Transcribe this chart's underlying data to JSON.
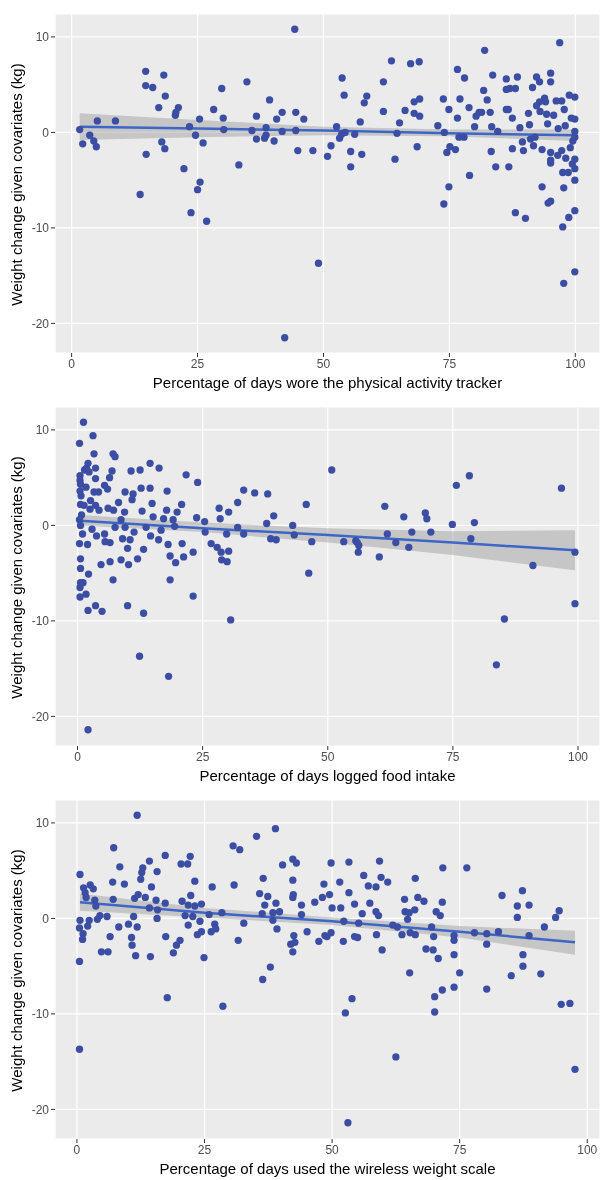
{
  "chart_data": [
    {
      "type": "scatter",
      "xlabel": "Percentage of days wore the physical activity tracker",
      "ylabel": "Weight change given covariates (kg)",
      "xlim": [
        -3.3,
        104.9
      ],
      "ylim": [
        -23.1,
        12.4
      ],
      "xticks": [
        0,
        25,
        50,
        75,
        100
      ],
      "yticks": [
        -20,
        -10,
        0,
        10
      ],
      "grid": true,
      "series": [
        {
          "marker": "circle",
          "color": "#3b4ea3",
          "x": [
            1.6,
            2.2,
            3.6,
            4.4,
            4.9,
            5.1,
            8.7,
            13.6,
            14.7,
            14.7,
            14.8,
            16.1,
            17.3,
            17.9,
            18.3,
            18.5,
            18.6,
            20.6,
            20.7,
            21.2,
            22.3,
            23.4,
            23.7,
            24.6,
            25.0,
            25.4,
            25.5,
            26.1,
            26.8,
            28.2,
            29.8,
            30.1,
            30.2,
            33.2,
            34.8,
            35.8,
            36.7,
            36.7,
            38.3,
            38.6,
            38.6,
            39.3,
            40.2,
            40.7,
            41.8,
            41.8,
            42.3,
            44.3,
            44.5,
            44.5,
            44.9,
            46.1,
            47.9,
            49.0,
            50.8,
            51.5,
            52.6,
            53.2,
            53.6,
            53.7,
            54.1,
            54.3,
            55.4,
            55.4,
            56.2,
            57.3,
            57.6,
            58.1,
            58.6,
            61.9,
            61.9,
            63.5,
            64.2,
            64.6,
            65.1,
            66.2,
            67.3,
            68.0,
            68.0,
            68.6,
            69.0,
            69.1,
            69.1,
            72.7,
            73.8,
            73.9,
            74.0,
            74.5,
            74.9,
            74.9,
            75.1,
            76.2,
            76.6,
            76.6,
            76.9,
            77.1,
            77.9,
            78.0,
            78.9,
            79.0,
            80.0,
            80.3,
            80.9,
            81.4,
            81.8,
            82.0,
            82.5,
            83.1,
            83.3,
            83.4,
            83.6,
            84.2,
            84.6,
            86.3,
            86.3,
            86.3,
            86.7,
            86.8,
            87.0,
            87.5,
            87.5,
            88.1,
            88.1,
            88.5,
            89.0,
            89.5,
            89.7,
            90.1,
            90.7,
            90.9,
            91.1,
            91.5,
            91.7,
            92.0,
            92.3,
            92.3,
            92.9,
            92.9,
            93.0,
            93.4,
            93.4,
            93.9,
            94.1,
            94.3,
            94.5,
            94.6,
            95.1,
            95.1,
            95.1,
            95.1,
            95.1,
            95.1,
            95.7,
            96.2,
            96.5,
            96.6,
            96.9,
            97.3,
            97.3,
            97.5,
            97.5,
            97.7,
            97.7,
            97.8,
            98.0,
            98.1,
            98.6,
            98.7,
            98.8,
            99.0,
            99.2,
            99.4,
            99.5,
            99.9,
            99.9,
            99.9,
            99.9,
            99.9,
            99.9,
            99.9,
            99.9,
            99.9
          ],
          "values": [
            0.3,
            -1.2,
            -0.3,
            -0.9,
            -1.5,
            1.2,
            1.2,
            -6.5,
            6.4,
            4.9,
            -2.3,
            4.7,
            2.6,
            -1.0,
            6.0,
            -1.7,
            3.8,
            1.8,
            2.1,
            2.6,
            -3.8,
            0.6,
            -8.4,
            -0.3,
            -6.0,
            1.4,
            -5.2,
            -1.1,
            -9.3,
            2.4,
            4.6,
            1.5,
            0.3,
            -3.4,
            5.3,
            0.2,
            1.7,
            -0.7,
            -0.6,
            0.5,
            -0.3,
            3.4,
            -0.9,
            1.4,
            2.1,
            0.1,
            -21.5,
            10.8,
            2.1,
            0.2,
            -1.9,
            1.4,
            -1.9,
            -13.7,
            -2.5,
            -1.4,
            0.6,
            -0.6,
            -0.2,
            5.7,
            3.9,
            0.0,
            -2.0,
            -3.6,
            -0.2,
            1.1,
            -2.3,
            3.1,
            3.8,
            5.3,
            2.2,
            7.5,
            -2.8,
            -0.1,
            1.0,
            2.3,
            7.2,
            3.2,
            2.0,
            -1.5,
            7.4,
            3.5,
            1.7,
            0.7,
            3.5,
            -7.5,
            0.0,
            -2.1,
            -5.7,
            2.4,
            -1.5,
            -1.8,
            6.6,
            1.5,
            -0.5,
            3.5,
            -0.5,
            5.7,
            2.6,
            -4.5,
            0.6,
            1.7,
            2.1,
            2.1,
            4.4,
            8.6,
            3.4,
            2.1,
            -2.0,
            0.6,
            6.0,
            -3.6,
            0.1,
            5.6,
            4.5,
            2.4,
            2.4,
            -3.6,
            4.6,
            -1.7,
            1.5,
            4.6,
            -8.4,
            5.8,
            0.5,
            -1.0,
            -1.9,
            -9.0,
            2.0,
            0.8,
            -0.7,
            4.7,
            -1.4,
            -0.5,
            5.8,
            2.8,
            5.3,
            3.2,
            2.2,
            -1.8,
            -5.7,
            3.6,
            3.2,
            1.9,
            0.9,
            -7.4,
            -7.2,
            6.2,
            5.3,
            -3.2,
            -2.9,
            -2.1,
            1.8,
            3.3,
            -2.4,
            0.4,
            9.4,
            3.3,
            -1.9,
            -4.2,
            -9.9,
            -5.8,
            -15.8,
            2.4,
            0.7,
            -2.7,
            -4.2,
            -8.9,
            3.9,
            -1.6,
            1.5,
            -3.3,
            -0.9,
            3.7,
            -14.6,
            -8.2,
            -5.0,
            -3.8,
            -2.8,
            0.1,
            -0.5,
            1.4
          ]
        },
        {
          "type": "line",
          "color": "#3d66c7",
          "x": [
            1.6,
            25,
            50,
            75,
            100
          ],
          "values": [
            0.6,
            0.4,
            0.2,
            -0.1,
            -0.3
          ],
          "lower": [
            -0.8,
            -0.5,
            -0.3,
            -0.4,
            -0.9
          ],
          "upper": [
            2.0,
            1.3,
            0.6,
            0.3,
            0.3
          ]
        }
      ]
    },
    {
      "type": "scatter",
      "xlabel": "Percentage of days logged food intake",
      "ylabel": "Weight change given covariates (kg)",
      "xlim": [
        -4.5,
        104.4
      ],
      "ylim": [
        -23.1,
        12.4
      ],
      "xticks": [
        0,
        25,
        50,
        75,
        100
      ],
      "yticks": [
        -20,
        -10,
        0,
        10
      ],
      "grid": true,
      "series": [
        {
          "marker": "circle",
          "color": "#3b4ea3",
          "x": [
            0.4,
            1.2,
            3.1,
            0.5,
            0.5,
            0.6,
            0.5,
            0.7,
            0.6,
            0.8,
            0.4,
            0.6,
            0.4,
            0.6,
            0.6,
            0.6,
            0.5,
            0.5,
            1.1,
            1.0,
            1.3,
            1.4,
            1.7,
            1.8,
            1.7,
            2.1,
            2.1,
            2.2,
            2.1,
            2.3,
            2.0,
            2.6,
            2.5,
            2.9,
            3.3,
            3.3,
            3.6,
            3.6,
            3.6,
            3.6,
            3.8,
            4.2,
            4.3,
            4.7,
            4.9,
            5.4,
            5.4,
            5.5,
            6.0,
            6.1,
            6.4,
            6.5,
            6.5,
            6.9,
            7.1,
            7.1,
            7.2,
            7.5,
            7.5,
            8.2,
            8.7,
            8.7,
            9.0,
            9.4,
            9.5,
            9.5,
            10.0,
            10.0,
            10.2,
            10.5,
            10.7,
            10.9,
            11.1,
            11.3,
            12.0,
            12.4,
            12.5,
            12.7,
            13.2,
            13.2,
            12.9,
            13.7,
            14.5,
            14.5,
            14.6,
            14.9,
            15.1,
            16.2,
            16.3,
            16.7,
            17.2,
            17.8,
            17.9,
            18.1,
            18.2,
            18.5,
            18.5,
            19.1,
            19.4,
            19.6,
            19.9,
            20.8,
            20.9,
            21.2,
            21.7,
            23.1,
            23.1,
            23.8,
            24.0,
            25.4,
            25.5,
            26.7,
            27.9,
            28.3,
            28.5,
            28.7,
            28.8,
            29.8,
            29.9,
            30.2,
            30.2,
            30.6,
            32.0,
            32.0,
            33.2,
            33.2,
            35.4,
            37.8,
            38.0,
            38.6,
            39.2,
            39.7,
            43.0,
            43.3,
            45.7,
            46.2,
            46.8,
            50.8,
            53.2,
            55.6,
            55.9,
            56.2,
            56.1,
            60.3,
            61.4,
            61.9,
            63.6,
            65.2,
            66.2,
            66.8,
            69.5,
            69.8,
            70.6,
            74.9,
            75.7,
            78.3,
            78.6,
            79.3,
            83.7,
            85.3,
            91.0,
            96.7,
            99.4,
            99.4
          ],
          "values": [
            8.6,
            10.8,
            9.4,
            5.2,
            4.7,
            4.3,
            3.6,
            3.1,
            2.2,
            1.1,
            0.6,
            0.0,
            -1.9,
            -3.5,
            -4.5,
            -6.0,
            -6.5,
            -7.5,
            -6.0,
            -0.9,
            2.1,
            5.8,
            4.0,
            6.0,
            -7.2,
            -21.4,
            -8.9,
            -5.1,
            6.5,
            5.6,
            -2.0,
            2.6,
            1.7,
            -0.4,
            3.5,
            7.5,
            6.0,
            4.9,
            -8.4,
            2.1,
            -1.1,
            3.5,
            1.6,
            -4.1,
            -9.0,
            -0.9,
            4.2,
            -1.7,
            3.8,
            1.8,
            5.0,
            -3.8,
            -1.8,
            5.7,
            7.5,
            -5.7,
            1.6,
            7.2,
            -0.2,
            2.4,
            0.6,
            -3.6,
            -1.4,
            1.4,
            3.5,
            -0.2,
            -2.4,
            -8.4,
            -4.1,
            -1.5,
            5.7,
            2.7,
            3.3,
            -0.7,
            -3.5,
            -13.7,
            5.8,
            3.9,
            -2.5,
            -9.2,
            1.5,
            -0.2,
            6.5,
            3.9,
            -1.1,
            2.3,
            0.9,
            -1.5,
            6.0,
            -0.5,
            0.7,
            1.6,
            3.6,
            -2.0,
            -15.8,
            -3.2,
            -5.7,
            0.6,
            -0.1,
            -3.9,
            1.4,
            2.2,
            -1.9,
            -3.3,
            5.3,
            -2.8,
            -7.4,
            0.8,
            4.5,
            0.4,
            -0.7,
            -1.9,
            -2.3,
            1.8,
            0.7,
            -2.8,
            -3.6,
            -0.9,
            -3.8,
            1.4,
            -2.7,
            -9.9,
            -0.2,
            2.4,
            -0.9,
            3.7,
            3.4,
            0.2,
            3.3,
            -1.4,
            1.0,
            -1.5,
            0.0,
            -1.0,
            2.2,
            -5.0,
            -1.7,
            5.8,
            -1.7,
            -1.6,
            -1.8,
            -2.1,
            -2.8,
            -3.3,
            2.0,
            -0.9,
            -1.8,
            0.9,
            -2.3,
            -0.7,
            1.3,
            0.7,
            -0.7,
            0.1,
            4.2,
            5.2,
            -1.4,
            0.3,
            -14.6,
            -9.8,
            -4.2,
            3.9,
            -2.8,
            -8.2
          ]
        },
        {
          "type": "line",
          "color": "#3d66c7",
          "x": [
            0.5,
            25,
            50,
            75,
            99.4
          ],
          "values": [
            0.5,
            -0.3,
            -1.0,
            -1.8,
            -2.6
          ],
          "lower": [
            0.0,
            -0.7,
            -1.8,
            -3.1,
            -4.7
          ],
          "upper": [
            1.1,
            0.3,
            -0.3,
            -0.6,
            -0.5
          ]
        }
      ]
    },
    {
      "type": "scatter",
      "xlabel": "Percentage of days used the wireless weight scale",
      "ylabel": "Weight change given covariates (kg)",
      "xlim": [
        -4.3,
        102.5
      ],
      "ylim": [
        -23.1,
        12.4
      ],
      "xticks": [
        0,
        25,
        50,
        75,
        100
      ],
      "yticks": [
        -20,
        -10,
        0,
        10
      ],
      "grid": true,
      "series": [
        {
          "marker": "circle",
          "color": "#3b4ea3",
          "x": [
            0.6,
            0.6,
            0.5,
            0.5,
            0.5,
            1.1,
            1.2,
            1.3,
            1.6,
            1.8,
            2.1,
            2.4,
            2.6,
            3.2,
            3.5,
            3.7,
            4.0,
            4.5,
            4.8,
            5.9,
            6.1,
            6.5,
            7.0,
            7.1,
            7.2,
            8.2,
            8.4,
            9.3,
            10.1,
            10.7,
            10.8,
            11.1,
            11.3,
            11.5,
            11.8,
            11.8,
            12.0,
            12.5,
            12.7,
            12.9,
            13.4,
            14.2,
            14.2,
            14.4,
            14.6,
            15.5,
            15.7,
            15.7,
            15.8,
            17.3,
            17.3,
            17.4,
            17.7,
            18.9,
            19.5,
            20.2,
            20.4,
            20.6,
            21.2,
            21.7,
            21.8,
            21.8,
            22.2,
            22.3,
            22.7,
            23.1,
            23.1,
            23.6,
            24.1,
            24.4,
            24.4,
            24.9,
            25.9,
            26.3,
            26.5,
            27.0,
            27.2,
            28.4,
            28.6,
            30.6,
            30.8,
            31.6,
            31.9,
            32.7,
            35.2,
            35.8,
            36.3,
            36.4,
            36.5,
            36.8,
            37.4,
            37.9,
            38.4,
            38.4,
            38.9,
            39.0,
            39.2,
            39.7,
            40.3,
            41.9,
            42.3,
            42.3,
            42.3,
            42.3,
            42.4,
            42.5,
            42.7,
            43.0,
            44.0,
            44.0,
            45.1,
            46.6,
            47.4,
            48.4,
            48.1,
            48.6,
            49.0,
            49.5,
            49.8,
            49.8,
            50.0,
            51.5,
            51.7,
            52.2,
            52.3,
            52.6,
            53.1,
            53.3,
            53.3,
            53.9,
            54.4,
            54.4,
            55.0,
            55.2,
            55.9,
            56.2,
            57.1,
            57.4,
            58.6,
            58.6,
            58.7,
            59.1,
            59.3,
            59.6,
            59.8,
            60.9,
            61.9,
            62.5,
            62.8,
            63.7,
            64.2,
            64.3,
            64.8,
            65.1,
            65.2,
            65.3,
            66.2,
            66.3,
            66.3,
            66.8,
            68.0,
            68.4,
            69.5,
            69.8,
            69.9,
            70.1,
            70.1,
            70.4,
            70.8,
            71.2,
            71.6,
            71.6,
            71.7,
            73.9,
            73.9,
            73.9,
            73.9,
            75.0,
            76.4,
            77.9,
            80.3,
            80.3,
            80.3,
            82.6,
            83.3,
            85.1,
            86.3,
            86.3,
            87.3,
            87.4,
            87.4,
            88.6,
            88.6,
            90.9,
            91.6,
            93.8,
            94.5,
            94.9,
            96.6,
            97.6
          ],
          "values": [
            4.6,
            -0.2,
            -1.0,
            -4.5,
            -13.7,
            -2.2,
            -1.6,
            3.2,
            2.7,
            2.2,
            -0.8,
            -0.2,
            3.5,
            3.1,
            1.9,
            1.3,
            -0.1,
            0.3,
            -3.5,
            0.2,
            -3.5,
            -1.9,
            3.8,
            2.0,
            7.4,
            -0.9,
            5.4,
            3.6,
            -0.6,
            -2.0,
            -2.8,
            0.2,
            2.1,
            -3.9,
            10.8,
            -0.9,
            2.5,
            4.1,
            4.8,
            5.3,
            2.2,
            6.0,
            1.1,
            -4.0,
            3.3,
            1.9,
            4.9,
            0.0,
            0.9,
            6.6,
            1.6,
            -1.9,
            -8.3,
            -3.6,
            -2.8,
            -2.3,
            5.7,
            1.8,
            0.3,
            5.7,
            -0.7,
            1.4,
            6.5,
            2.4,
            0.2,
            3.9,
            1.3,
            -1.7,
            -0.3,
            1.5,
            -1.4,
            -4.1,
            0.4,
            -1.4,
            3.3,
            -0.6,
            -1.1,
            0.6,
            -9.2,
            7.6,
            3.5,
            -2.3,
            7.2,
            -0.5,
            8.6,
            2.6,
            0.5,
            -6.4,
            4.2,
            1.4,
            2.3,
            -5.1,
            -0.2,
            0.6,
            9.4,
            1.6,
            -1.1,
            0.7,
            5.6,
            -2.7,
            6.2,
            4.0,
            2.2,
            -3.5,
            2.5,
            -1.8,
            -2.5,
            5.8,
            0.4,
            1.4,
            -1.4,
            1.7,
            -2.4,
            3.6,
            2.2,
            -1.8,
            -1.9,
            2.5,
            5.8,
            -1.5,
            1.1,
            3.8,
            1.1,
            -2.4,
            -0.3,
            -9.9,
            -21.4,
            5.9,
            2.7,
            -8.4,
            1.5,
            -1.9,
            -2.0,
            -0.5,
            0.5,
            4.5,
            3.4,
            1.6,
            3.3,
            0.7,
            -1.7,
            0.3,
            6.0,
            4.3,
            -3.3,
            3.8,
            -0.7,
            -14.5,
            -0.9,
            -1.7,
            2.0,
            0.7,
            -0.1,
            0.6,
            -5.7,
            -1.5,
            0.9,
            4.2,
            -1.7,
            2.2,
            1.8,
            -3.2,
            -0.9,
            -3.3,
            -1.9,
            -8.2,
            -9.8,
            0.7,
            -4.2,
            0.3,
            1.7,
            -7.5,
            5.3,
            -1.8,
            -2.3,
            -3.8,
            -7.2,
            -5.7,
            5.3,
            -1.5,
            -1.6,
            -2.7,
            -7.4,
            -1.4,
            2.4,
            -6.0,
            1.3,
            0.1,
            2.9,
            -3.8,
            -5.0,
            1.4,
            -1.8,
            -5.8,
            -0.9,
            0.1,
            0.8,
            -9.0,
            -8.9,
            -15.8
          ]
        },
        {
          "type": "line",
          "color": "#3d66c7",
          "x": [
            0.6,
            25,
            50,
            75,
            97.6
          ],
          "values": [
            1.7,
            0.6,
            -0.3,
            -1.4,
            -2.5
          ],
          "lower": [
            0.8,
            0.1,
            -0.7,
            -2.0,
            -3.8
          ],
          "upper": [
            2.6,
            1.1,
            0.1,
            -0.8,
            -1.3
          ]
        }
      ]
    }
  ]
}
